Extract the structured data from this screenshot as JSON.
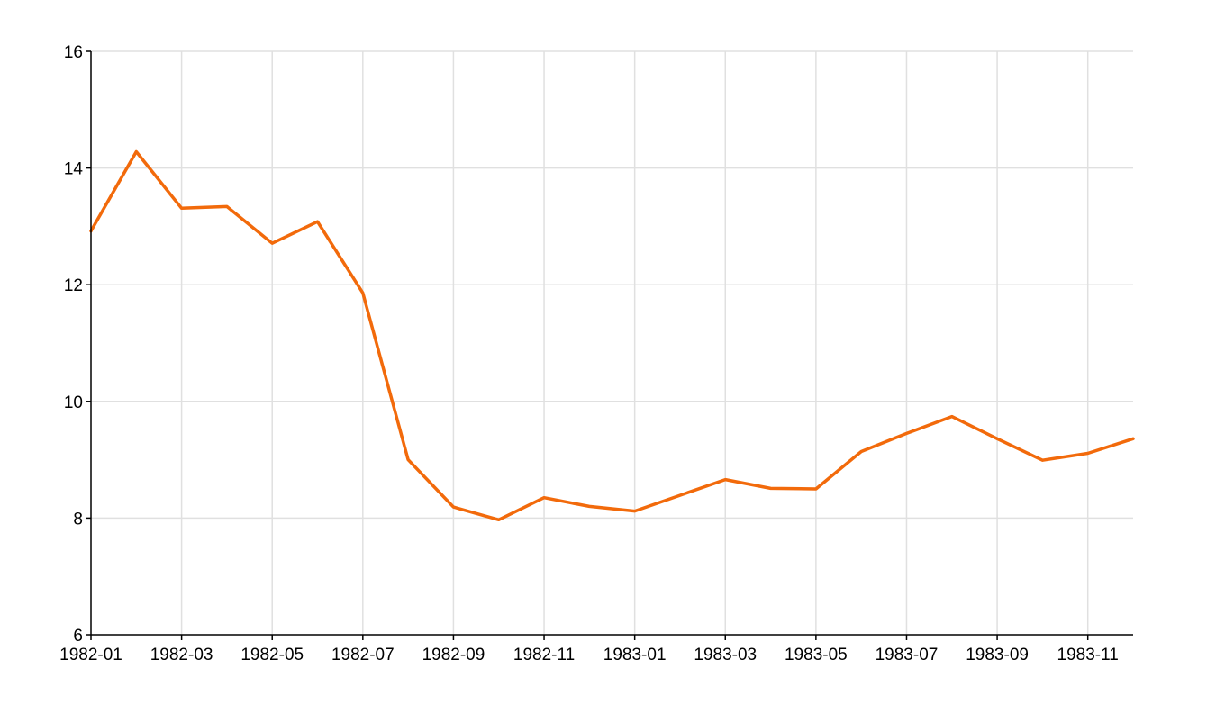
{
  "chart_data": {
    "type": "line",
    "title": "",
    "xlabel": "",
    "ylabel": "",
    "x_tick_labels": [
      "1982-01",
      "1982-03",
      "1982-05",
      "1982-07",
      "1982-09",
      "1982-11",
      "1983-01",
      "1983-03",
      "1983-05",
      "1983-07",
      "1983-09",
      "1983-11"
    ],
    "y_tick_labels": [
      "6",
      "8",
      "10",
      "12",
      "14",
      "16"
    ],
    "x_range": [
      "1982-01",
      "1983-12"
    ],
    "ylim": [
      6,
      16
    ],
    "grid": true,
    "line_color": "#f26a0b",
    "series": [
      {
        "x": [
          "1982-01",
          "1982-02",
          "1982-03",
          "1982-04",
          "1982-05",
          "1982-06",
          "1982-07",
          "1982-08",
          "1982-09",
          "1982-10",
          "1982-11",
          "1982-12",
          "1983-01",
          "1983-02",
          "1983-03",
          "1983-04",
          "1983-05",
          "1983-06",
          "1983-07",
          "1983-08",
          "1983-09",
          "1983-10",
          "1983-11",
          "1983-12"
        ],
        "values": [
          12.92,
          14.28,
          13.31,
          13.34,
          12.71,
          13.08,
          11.86,
          9.0,
          8.19,
          7.97,
          8.35,
          8.2,
          8.12,
          8.39,
          8.66,
          8.51,
          8.5,
          9.14,
          9.45,
          9.74,
          9.36,
          8.99,
          9.11,
          9.36
        ]
      }
    ]
  }
}
